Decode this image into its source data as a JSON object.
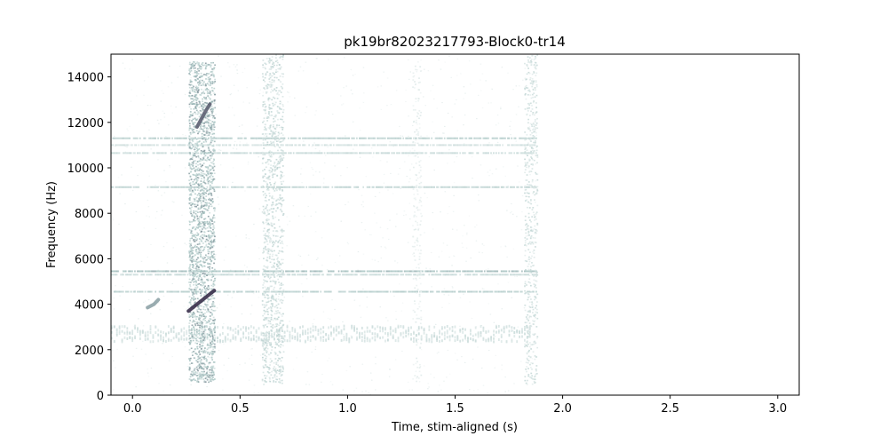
{
  "chart_data": {
    "type": "heatmap",
    "title": "pk19br82023217793-Block0-tr14",
    "xlabel": "Time, stim-aligned (s)",
    "ylabel": "Frequency (Hz)",
    "xlim": [
      -0.1,
      3.1
    ],
    "ylim": [
      0,
      15000
    ],
    "xticks": [
      0.0,
      0.5,
      1.0,
      1.5,
      2.0,
      2.5,
      3.0
    ],
    "xtick_labels": [
      "0.0",
      "0.5",
      "1.0",
      "1.5",
      "2.0",
      "2.5",
      "3.0"
    ],
    "yticks": [
      0,
      2000,
      4000,
      6000,
      8000,
      10000,
      12000,
      14000
    ],
    "ytick_labels": [
      "0",
      "2000",
      "4000",
      "6000",
      "8000",
      "10000",
      "12000",
      "14000"
    ],
    "grid": false,
    "colormap": {
      "low": "#ffffff",
      "mid": "#a7c4c2",
      "high": "#2c1e3d"
    },
    "signal_extent_s": [
      -0.1,
      1.88
    ],
    "harmonic_bands_hz": [
      {
        "freq": 11300,
        "time": [
          -0.1,
          1.88
        ],
        "intensity": 0.35
      },
      {
        "freq": 11000,
        "time": [
          -0.1,
          1.88
        ],
        "intensity": 0.2
      },
      {
        "freq": 10650,
        "time": [
          -0.1,
          1.88
        ],
        "intensity": 0.25
      },
      {
        "freq": 9150,
        "time": [
          -0.1,
          1.88
        ],
        "intensity": 0.3
      },
      {
        "freq": 5450,
        "time": [
          -0.1,
          1.88
        ],
        "intensity": 0.45
      },
      {
        "freq": 5300,
        "time": [
          -0.1,
          1.88
        ],
        "intensity": 0.25
      },
      {
        "freq": 4550,
        "time": [
          -0.1,
          1.88
        ],
        "intensity": 0.35
      }
    ],
    "broadband_events": [
      {
        "time": [
          0.26,
          0.38
        ],
        "freq": [
          600,
          14700
        ],
        "intensity": 0.65
      },
      {
        "time": [
          0.6,
          0.7
        ],
        "freq": [
          500,
          15000
        ],
        "intensity": 0.4
      },
      {
        "time": [
          1.3,
          1.34
        ],
        "freq": [
          500,
          14500
        ],
        "intensity": 0.2
      },
      {
        "time": [
          1.82,
          1.88
        ],
        "freq": [
          500,
          15000
        ],
        "intensity": 0.35
      }
    ],
    "strong_traces": [
      {
        "points": [
          [
            0.26,
            3700
          ],
          [
            0.3,
            4000
          ],
          [
            0.34,
            4300
          ],
          [
            0.38,
            4600
          ]
        ],
        "intensity": 0.95
      },
      {
        "points": [
          [
            0.3,
            11800
          ],
          [
            0.34,
            12500
          ],
          [
            0.36,
            12800
          ]
        ],
        "intensity": 0.8
      },
      {
        "points": [
          [
            0.07,
            3850
          ],
          [
            0.1,
            4000
          ],
          [
            0.12,
            4200
          ]
        ],
        "intensity": 0.6
      }
    ],
    "low_band": {
      "time": [
        -0.1,
        1.85
      ],
      "freq": [
        2400,
        3100
      ],
      "intensity": 0.22
    }
  }
}
